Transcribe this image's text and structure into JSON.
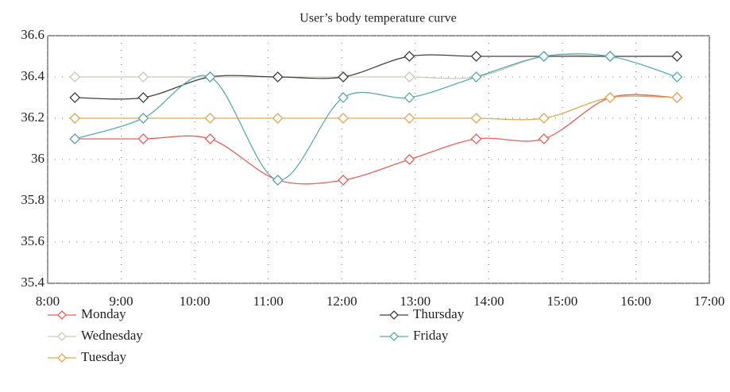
{
  "chart_data": {
    "type": "line",
    "title": "User’s body temperature curve",
    "x": [
      8.37,
      9.3,
      10.21,
      11.13,
      12.02,
      12.92,
      13.83,
      14.75,
      15.65,
      16.56
    ],
    "xlim": [
      8,
      17
    ],
    "xticks": [
      {
        "value": 8,
        "label": "8:00"
      },
      {
        "value": 9,
        "label": "9:00"
      },
      {
        "value": 10,
        "label": "10:00"
      },
      {
        "value": 11,
        "label": "11:00"
      },
      {
        "value": 12,
        "label": "12:00"
      },
      {
        "value": 13,
        "label": "13:00"
      },
      {
        "value": 14,
        "label": "14:00"
      },
      {
        "value": 15,
        "label": "15:00"
      },
      {
        "value": 16,
        "label": "16:00"
      },
      {
        "value": 17,
        "label": "17:00"
      }
    ],
    "ylim": [
      35.4,
      36.6
    ],
    "yticks": [
      35.4,
      35.6,
      35.8,
      36,
      36.2,
      36.4,
      36.6
    ],
    "grid": true,
    "series": [
      {
        "name": "Monday",
        "color": "#e8605a",
        "values": [
          36.1,
          36.1,
          36.1,
          35.9,
          35.9,
          36.0,
          36.1,
          36.1,
          36.3,
          36.3
        ]
      },
      {
        "name": "Wednesday",
        "color": "#c9c9b9",
        "values": [
          36.4,
          36.4,
          36.4,
          36.4,
          36.4,
          36.4,
          36.4,
          36.5,
          36.5,
          36.5
        ]
      },
      {
        "name": "Tuesday",
        "color": "#e0a850",
        "values": [
          36.2,
          36.2,
          36.2,
          36.2,
          36.2,
          36.2,
          36.2,
          36.2,
          36.3,
          36.3
        ]
      },
      {
        "name": "Thursday",
        "color": "#404040",
        "values": [
          36.3,
          36.3,
          36.4,
          36.4,
          36.4,
          36.5,
          36.5,
          36.5,
          36.5,
          36.5
        ]
      },
      {
        "name": "Friday",
        "color": "#5aabb0",
        "values": [
          36.1,
          36.2,
          36.4,
          35.9,
          36.3,
          36.3,
          36.4,
          36.5,
          36.5,
          36.4
        ]
      }
    ]
  }
}
